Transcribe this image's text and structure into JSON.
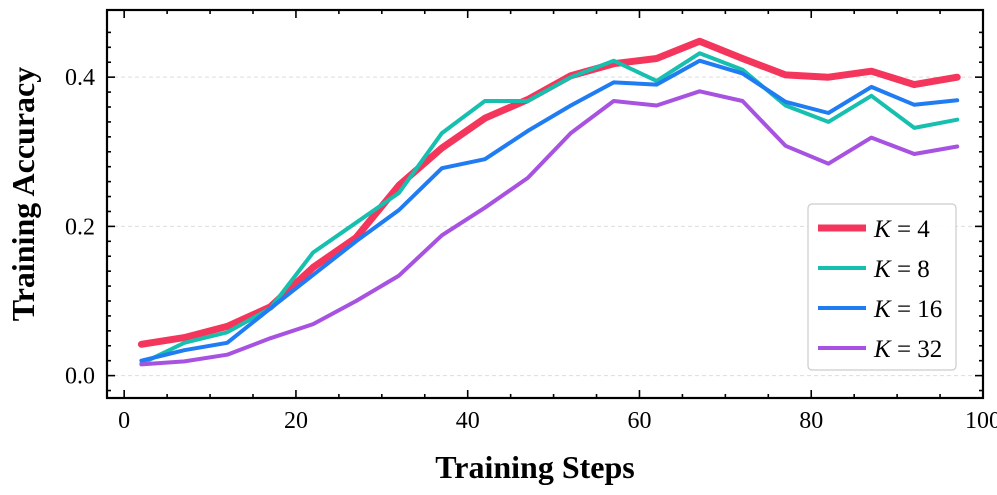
{
  "chart_data": {
    "type": "line",
    "title": "",
    "xlabel": "Training Steps",
    "ylabel": "Training Accuracy",
    "xlim": [
      -2,
      100
    ],
    "ylim": [
      -0.03,
      0.49
    ],
    "xticks": [
      0,
      20,
      40,
      60,
      80,
      100
    ],
    "xtick_labels": [
      "0",
      "20",
      "40",
      "60",
      "80",
      "100"
    ],
    "yticks": [
      0.0,
      0.2,
      0.4
    ],
    "ytick_labels": [
      "0.0",
      "0.2",
      "0.4"
    ],
    "grid": "horizontal dashed",
    "legend_position": "lower-right",
    "x": [
      2,
      7,
      12,
      17,
      22,
      27,
      32,
      37,
      42,
      47,
      52,
      57,
      62,
      67,
      72,
      77,
      82,
      87,
      92,
      97
    ],
    "series": [
      {
        "name": "K = 4",
        "legend_var": "K",
        "legend_value": "= 4",
        "color": "#f5365c",
        "width": 7,
        "values": [
          0.042,
          0.051,
          0.066,
          0.092,
          0.145,
          0.185,
          0.255,
          0.305,
          0.345,
          0.37,
          0.402,
          0.418,
          0.425,
          0.448,
          0.425,
          0.403,
          0.4,
          0.408,
          0.39,
          0.4
        ]
      },
      {
        "name": "K = 8",
        "legend_var": "K",
        "legend_value": "= 8",
        "color": "#17bfae",
        "width": 4,
        "values": [
          0.016,
          0.044,
          0.058,
          0.09,
          0.165,
          0.205,
          0.245,
          0.325,
          0.368,
          0.368,
          0.4,
          0.422,
          0.395,
          0.432,
          0.41,
          0.362,
          0.34,
          0.375,
          0.332,
          0.343
        ]
      },
      {
        "name": "K = 16",
        "legend_var": "K",
        "legend_value": "= 16",
        "color": "#1f7cf2",
        "width": 4,
        "values": [
          0.02,
          0.034,
          0.044,
          0.09,
          0.135,
          0.18,
          0.222,
          0.278,
          0.29,
          0.328,
          0.362,
          0.393,
          0.39,
          0.422,
          0.405,
          0.367,
          0.352,
          0.387,
          0.363,
          0.369
        ]
      },
      {
        "name": "K = 32",
        "legend_var": "K",
        "legend_value": "= 32",
        "color": "#a752e0",
        "width": 4,
        "values": [
          0.015,
          0.019,
          0.028,
          0.05,
          0.069,
          0.1,
          0.134,
          0.188,
          0.225,
          0.265,
          0.325,
          0.368,
          0.362,
          0.381,
          0.368,
          0.308,
          0.284,
          0.319,
          0.297,
          0.307
        ]
      }
    ]
  }
}
